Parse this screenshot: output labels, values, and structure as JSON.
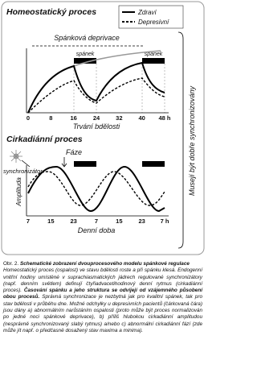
{
  "figure": {
    "panel_1": {
      "title": "Homeostatický proces",
      "legend": [
        "Zdraví",
        "Depresivní"
      ],
      "annotation": "Spánková deprivace",
      "sleep_labels": [
        "spánek",
        "spánek"
      ],
      "x_ticks": [
        "0",
        "8",
        "16",
        "24",
        "32",
        "40",
        "48 h"
      ],
      "x_label": "Trvání bdělosti"
    },
    "panel_2": {
      "title": "Cirkadiánní proces",
      "phase_label": "Fáze",
      "synchronizer_label": "synchronizátor",
      "y_label": "Amplituda",
      "x_ticks": [
        "7",
        "15",
        "23",
        "7",
        "15",
        "23",
        "7 h"
      ],
      "x_label": "Denní doba"
    },
    "side_label": "Musejí být dobře synchronizovány"
  },
  "caption": {
    "number": "Obr. 2.",
    "title": "Schematické zobrazení dvouprocesového modelu spánkové regulace",
    "text_before": "Homeostatický proces (ospalost) ve stavu bdělosti roste a při spánku klesá. Endogenní vnitřní hodiny umístěné v suprachiasmatických jádrech regulované synchronizátory (např. denním světlem) definují čtyřiadvacetihodinový denní rytmus (cirkadiánní proces).",
    "text_bold": "Časování spánku a jeho struktura se odvíjejí od vzájemného působení obou procesů.",
    "text_after": "Správná synchronizace je nezbytná jak pro kvalitní spánek, tak pro stav bdělosti v průběhu dne. Možné odchylky u depresivních pacientů (čárkovaná čára) jsou dány a) abnormálním narůstáním ospalosti (proto může být proces normalizován po jedné noci spánkové deprivace), b) příliš hlubokou cirkadiánní amplitudou (nesprávně synchronizovaný slabý rytmus) a/nebo c) abnormální cirkadiánní fází (zde může jít např. o předčasně dosažený stav maxima a minima)."
  }
}
